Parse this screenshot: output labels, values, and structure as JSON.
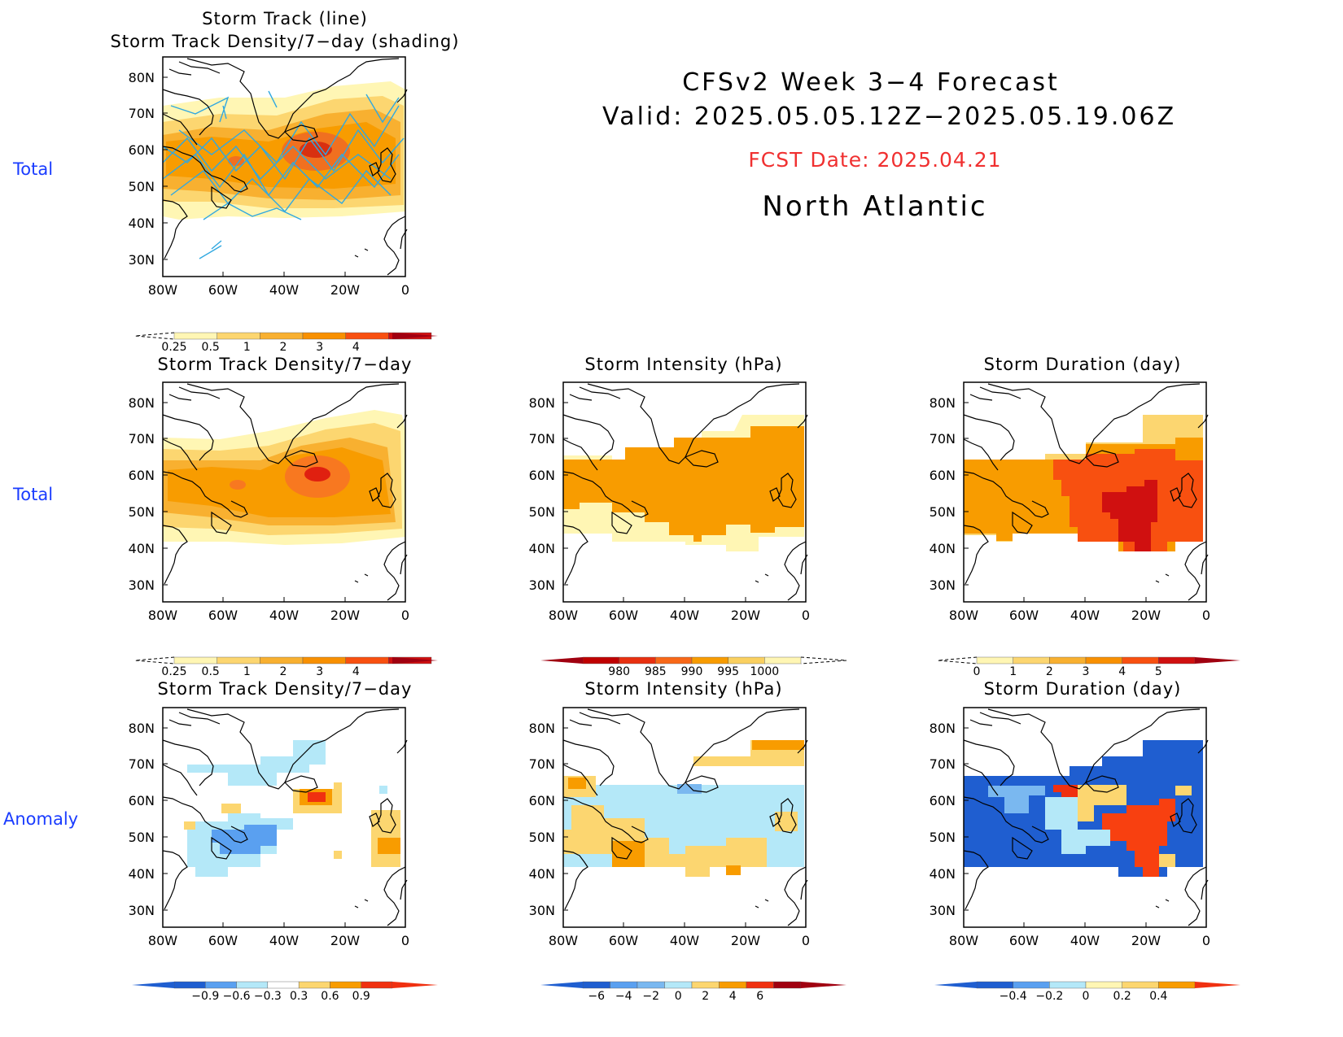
{
  "header": {
    "line1": "CFSv2  Week  3−4  Forecast",
    "line2": "Valid:  2025.05.05.12Z−2025.05.19.06Z",
    "fcst_date": "FCST Date: 2025.04.21",
    "region": "North  Atlantic"
  },
  "row_labels": [
    "Total",
    "Total",
    "Anomaly"
  ],
  "axes": {
    "lat_ticks": [
      "80N",
      "70N",
      "60N",
      "50N",
      "40N",
      "30N"
    ],
    "lon_ticks": [
      "80W",
      "60W",
      "40W",
      "20W",
      "0"
    ]
  },
  "panels": {
    "p1": {
      "title1": "Storm  Track  (line)",
      "title2": "Storm  Track  Density/7−day  (shading)"
    },
    "p2": {
      "title": "Storm  Track  Density/7−day"
    },
    "p3": {
      "title": "Storm  Intensity  (hPa)"
    },
    "p4": {
      "title": "Storm  Duration  (day)"
    },
    "p5": {
      "title": "Storm  Track  Density/7−day"
    },
    "p6": {
      "title": "Storm  Intensity  (hPa)"
    },
    "p7": {
      "title": "Storm  Duration  (day)"
    }
  },
  "colorbars": {
    "density": {
      "labels": [
        "0.25",
        "0.5",
        "1",
        "2",
        "3",
        "4"
      ],
      "colors": [
        "#fff6b4",
        "#fcd670",
        "#f8b030",
        "#f89000",
        "#f85010",
        "#d01010"
      ]
    },
    "intensity": {
      "labels": [
        "980",
        "985",
        "990",
        "995",
        "1000"
      ],
      "colors": [
        "#c00000",
        "#e83010",
        "#f86818",
        "#f89c00",
        "#fad060",
        "#fff6b4"
      ]
    },
    "duration": {
      "labels": [
        "0",
        "1",
        "2",
        "3",
        "4",
        "5"
      ],
      "colors": [
        "#fff6b4",
        "#fcd670",
        "#f8b030",
        "#f89000",
        "#f85010",
        "#d01010"
      ]
    },
    "density_anom": {
      "labels": [
        "−0.9",
        "−0.6",
        "−0.3",
        "0.3",
        "0.6",
        "0.9"
      ]
    },
    "intensity_anom": {
      "labels": [
        "−6",
        "−4",
        "−2",
        "0",
        "2",
        "4",
        "6"
      ]
    },
    "duration_anom": {
      "labels": [
        "−0.4",
        "−0.2",
        "0",
        "0.2",
        "0.4"
      ]
    }
  },
  "colors": {
    "row_label": "#1a3cff",
    "fcst_date": "#f03030",
    "track_line": "#30a8e0"
  }
}
